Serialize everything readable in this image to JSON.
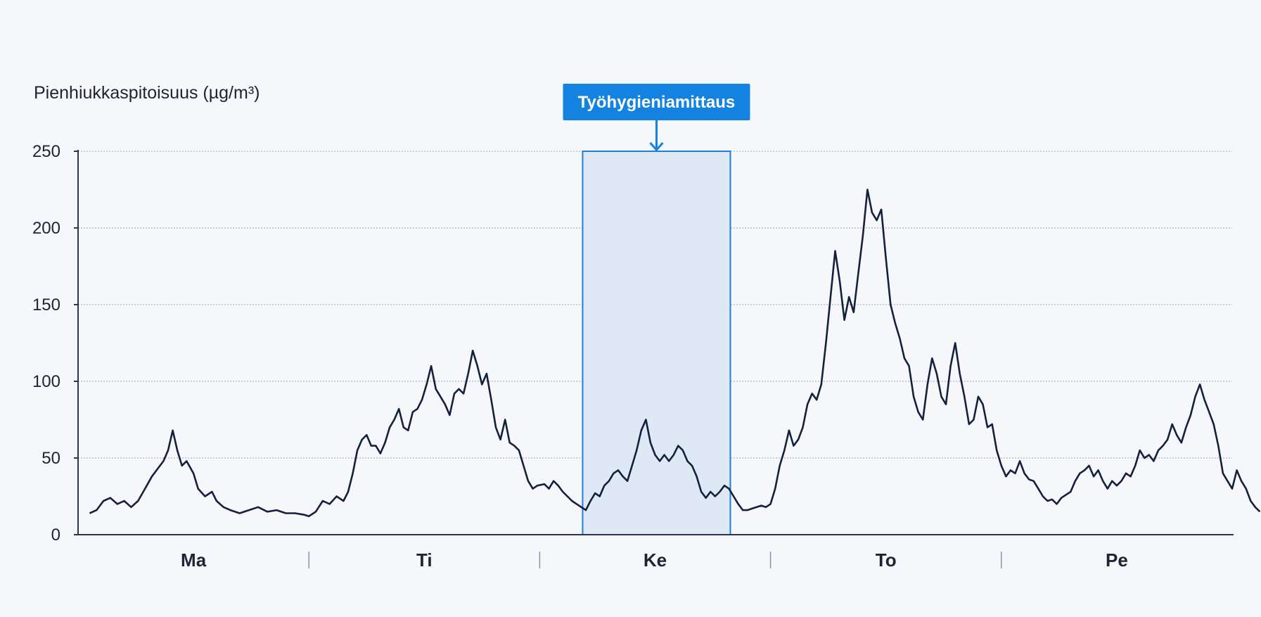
{
  "colors": {
    "background": "#f6f7fa",
    "line": "#14213d",
    "axis": "#2b3550",
    "grid": "#9aa3b5",
    "highlight_fill": "#dfe9f6",
    "highlight_border": "#1f7fd8",
    "annotation_bg": "#1482e0",
    "annotation_text": "#ffffff"
  },
  "chart_data": {
    "type": "line",
    "title": "",
    "ylabel": "Pienhiukkaspitoisuus (µg/m³)",
    "xlabel": "",
    "ylim": [
      0,
      250
    ],
    "yticks": [
      0,
      50,
      100,
      150,
      200,
      250
    ],
    "grid": "horizontal dotted",
    "x_categories": [
      "Ma",
      "Ti",
      "Ke",
      "To",
      "Pe"
    ],
    "x_domain": [
      0,
      5
    ],
    "highlight": {
      "label": "Työhygieniamittaus",
      "x_start": 2.186,
      "x_end": 2.826
    },
    "series": [
      {
        "points": [
          [
            0.05,
            14
          ],
          [
            0.08,
            16
          ],
          [
            0.11,
            22
          ],
          [
            0.14,
            24
          ],
          [
            0.17,
            20
          ],
          [
            0.2,
            22
          ],
          [
            0.23,
            18
          ],
          [
            0.26,
            22
          ],
          [
            0.29,
            30
          ],
          [
            0.32,
            38
          ],
          [
            0.34,
            42
          ],
          [
            0.37,
            48
          ],
          [
            0.39,
            55
          ],
          [
            0.41,
            68
          ],
          [
            0.43,
            55
          ],
          [
            0.45,
            45
          ],
          [
            0.47,
            48
          ],
          [
            0.5,
            40
          ],
          [
            0.52,
            30
          ],
          [
            0.55,
            25
          ],
          [
            0.58,
            28
          ],
          [
            0.6,
            22
          ],
          [
            0.63,
            18
          ],
          [
            0.66,
            16
          ],
          [
            0.7,
            14
          ],
          [
            0.74,
            16
          ],
          [
            0.78,
            18
          ],
          [
            0.82,
            15
          ],
          [
            0.86,
            16
          ],
          [
            0.9,
            14
          ],
          [
            0.94,
            14
          ],
          [
            0.98,
            13
          ],
          [
            1.0,
            12
          ],
          [
            1.03,
            15
          ],
          [
            1.06,
            22
          ],
          [
            1.09,
            20
          ],
          [
            1.12,
            25
          ],
          [
            1.15,
            22
          ],
          [
            1.17,
            28
          ],
          [
            1.19,
            40
          ],
          [
            1.21,
            55
          ],
          [
            1.23,
            62
          ],
          [
            1.25,
            65
          ],
          [
            1.27,
            58
          ],
          [
            1.29,
            58
          ],
          [
            1.31,
            53
          ],
          [
            1.33,
            60
          ],
          [
            1.35,
            70
          ],
          [
            1.37,
            75
          ],
          [
            1.39,
            82
          ],
          [
            1.41,
            70
          ],
          [
            1.43,
            68
          ],
          [
            1.45,
            80
          ],
          [
            1.47,
            82
          ],
          [
            1.49,
            88
          ],
          [
            1.51,
            98
          ],
          [
            1.53,
            110
          ],
          [
            1.55,
            95
          ],
          [
            1.57,
            90
          ],
          [
            1.59,
            85
          ],
          [
            1.61,
            78
          ],
          [
            1.63,
            92
          ],
          [
            1.65,
            95
          ],
          [
            1.67,
            92
          ],
          [
            1.69,
            105
          ],
          [
            1.71,
            120
          ],
          [
            1.73,
            110
          ],
          [
            1.75,
            98
          ],
          [
            1.77,
            105
          ],
          [
            1.79,
            88
          ],
          [
            1.81,
            70
          ],
          [
            1.83,
            62
          ],
          [
            1.85,
            75
          ],
          [
            1.87,
            60
          ],
          [
            1.89,
            58
          ],
          [
            1.91,
            55
          ],
          [
            1.93,
            45
          ],
          [
            1.95,
            35
          ],
          [
            1.97,
            30
          ],
          [
            1.99,
            32
          ],
          [
            2.02,
            33
          ],
          [
            2.04,
            30
          ],
          [
            2.06,
            35
          ],
          [
            2.08,
            32
          ],
          [
            2.1,
            28
          ],
          [
            2.12,
            25
          ],
          [
            2.14,
            22
          ],
          [
            2.16,
            20
          ],
          [
            2.18,
            18
          ],
          [
            2.2,
            16
          ],
          [
            2.22,
            22
          ],
          [
            2.24,
            27
          ],
          [
            2.26,
            25
          ],
          [
            2.28,
            32
          ],
          [
            2.3,
            35
          ],
          [
            2.32,
            40
          ],
          [
            2.34,
            42
          ],
          [
            2.36,
            38
          ],
          [
            2.38,
            35
          ],
          [
            2.4,
            45
          ],
          [
            2.42,
            55
          ],
          [
            2.44,
            68
          ],
          [
            2.46,
            75
          ],
          [
            2.48,
            60
          ],
          [
            2.5,
            52
          ],
          [
            2.52,
            48
          ],
          [
            2.54,
            52
          ],
          [
            2.56,
            48
          ],
          [
            2.58,
            52
          ],
          [
            2.6,
            58
          ],
          [
            2.62,
            55
          ],
          [
            2.64,
            48
          ],
          [
            2.66,
            45
          ],
          [
            2.68,
            38
          ],
          [
            2.7,
            28
          ],
          [
            2.72,
            24
          ],
          [
            2.74,
            28
          ],
          [
            2.76,
            25
          ],
          [
            2.78,
            28
          ],
          [
            2.8,
            32
          ],
          [
            2.82,
            30
          ],
          [
            2.84,
            25
          ],
          [
            2.86,
            20
          ],
          [
            2.88,
            16
          ],
          [
            2.9,
            16
          ],
          [
            2.92,
            17
          ],
          [
            2.94,
            18
          ],
          [
            2.96,
            19
          ],
          [
            2.98,
            18
          ],
          [
            3.0,
            20
          ],
          [
            3.02,
            30
          ],
          [
            3.04,
            45
          ],
          [
            3.06,
            55
          ],
          [
            3.08,
            68
          ],
          [
            3.1,
            58
          ],
          [
            3.12,
            62
          ],
          [
            3.14,
            70
          ],
          [
            3.16,
            85
          ],
          [
            3.18,
            92
          ],
          [
            3.2,
            88
          ],
          [
            3.22,
            98
          ],
          [
            3.24,
            125
          ],
          [
            3.26,
            155
          ],
          [
            3.28,
            185
          ],
          [
            3.3,
            165
          ],
          [
            3.32,
            140
          ],
          [
            3.34,
            155
          ],
          [
            3.36,
            145
          ],
          [
            3.38,
            170
          ],
          [
            3.4,
            195
          ],
          [
            3.42,
            225
          ],
          [
            3.44,
            210
          ],
          [
            3.46,
            205
          ],
          [
            3.48,
            212
          ],
          [
            3.5,
            180
          ],
          [
            3.52,
            150
          ],
          [
            3.54,
            138
          ],
          [
            3.56,
            128
          ],
          [
            3.58,
            115
          ],
          [
            3.6,
            110
          ],
          [
            3.62,
            90
          ],
          [
            3.64,
            80
          ],
          [
            3.66,
            75
          ],
          [
            3.68,
            98
          ],
          [
            3.7,
            115
          ],
          [
            3.72,
            105
          ],
          [
            3.74,
            90
          ],
          [
            3.76,
            85
          ],
          [
            3.78,
            110
          ],
          [
            3.8,
            125
          ],
          [
            3.82,
            105
          ],
          [
            3.84,
            90
          ],
          [
            3.86,
            72
          ],
          [
            3.88,
            75
          ],
          [
            3.9,
            90
          ],
          [
            3.92,
            85
          ],
          [
            3.94,
            70
          ],
          [
            3.96,
            72
          ],
          [
            3.98,
            55
          ],
          [
            4.0,
            45
          ],
          [
            4.02,
            38
          ],
          [
            4.04,
            42
          ],
          [
            4.06,
            40
          ],
          [
            4.08,
            48
          ],
          [
            4.1,
            40
          ],
          [
            4.12,
            36
          ],
          [
            4.14,
            35
          ],
          [
            4.16,
            30
          ],
          [
            4.18,
            25
          ],
          [
            4.2,
            22
          ],
          [
            4.22,
            23
          ],
          [
            4.24,
            20
          ],
          [
            4.26,
            24
          ],
          [
            4.28,
            26
          ],
          [
            4.3,
            28
          ],
          [
            4.32,
            35
          ],
          [
            4.34,
            40
          ],
          [
            4.36,
            42
          ],
          [
            4.38,
            45
          ],
          [
            4.4,
            38
          ],
          [
            4.42,
            42
          ],
          [
            4.44,
            35
          ],
          [
            4.46,
            30
          ],
          [
            4.48,
            35
          ],
          [
            4.5,
            32
          ],
          [
            4.52,
            35
          ],
          [
            4.54,
            40
          ],
          [
            4.56,
            38
          ],
          [
            4.58,
            45
          ],
          [
            4.6,
            55
          ],
          [
            4.62,
            50
          ],
          [
            4.64,
            52
          ],
          [
            4.66,
            48
          ],
          [
            4.68,
            55
          ],
          [
            4.7,
            58
          ],
          [
            4.72,
            62
          ],
          [
            4.74,
            72
          ],
          [
            4.76,
            65
          ],
          [
            4.78,
            60
          ],
          [
            4.8,
            70
          ],
          [
            4.82,
            78
          ],
          [
            4.84,
            90
          ],
          [
            4.86,
            98
          ],
          [
            4.88,
            88
          ],
          [
            4.9,
            80
          ],
          [
            4.92,
            72
          ],
          [
            4.94,
            58
          ],
          [
            4.96,
            40
          ],
          [
            4.98,
            35
          ],
          [
            5.0,
            30
          ],
          [
            5.02,
            42
          ],
          [
            5.04,
            35
          ],
          [
            5.06,
            30
          ],
          [
            5.08,
            22
          ],
          [
            5.1,
            18
          ],
          [
            5.12,
            15
          ]
        ]
      }
    ]
  }
}
